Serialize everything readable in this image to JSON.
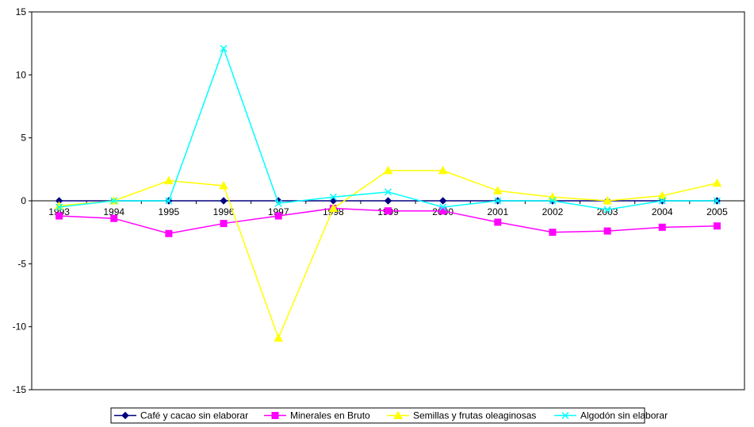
{
  "chart_data": {
    "type": "line",
    "title": "",
    "xlabel": "",
    "ylabel": "",
    "categories": [
      "1993",
      "1994",
      "1995",
      "1996",
      "1997",
      "1998",
      "1999",
      "2000",
      "2001",
      "2002",
      "2003",
      "2004",
      "2005"
    ],
    "ylim": [
      -15,
      15
    ],
    "yticks": [
      15,
      10,
      5,
      0,
      -5,
      -10,
      -15
    ],
    "grid": false,
    "legend_position": "bottom",
    "series": [
      {
        "name": "Café y cacao sin elaborar",
        "color": "#000080",
        "marker": "diamond",
        "values": [
          0,
          0,
          0,
          0,
          0,
          0,
          0,
          0,
          0,
          0,
          0,
          0,
          0
        ]
      },
      {
        "name": "Minerales en Bruto",
        "color": "#FF00FF",
        "marker": "square",
        "values": [
          -1.2,
          -1.4,
          -2.6,
          -1.8,
          -1.2,
          -0.6,
          -0.8,
          -0.8,
          -1.7,
          -2.5,
          -2.4,
          -2.1,
          -2.0
        ]
      },
      {
        "name": "Semillas y frutas oleaginosas",
        "color": "#FFFF00",
        "marker": "triangle",
        "values": [
          -0.4,
          0.0,
          1.6,
          1.2,
          -10.9,
          -0.6,
          2.4,
          2.4,
          0.8,
          0.3,
          0.0,
          0.4,
          1.4
        ]
      },
      {
        "name": "Algodón sin elaborar",
        "color": "#00FFFF",
        "marker": "x",
        "values": [
          -0.5,
          0.0,
          0.0,
          12.1,
          -0.2,
          0.3,
          0.7,
          -0.5,
          0.0,
          0.0,
          -0.7,
          0.0,
          0.0
        ]
      }
    ]
  }
}
